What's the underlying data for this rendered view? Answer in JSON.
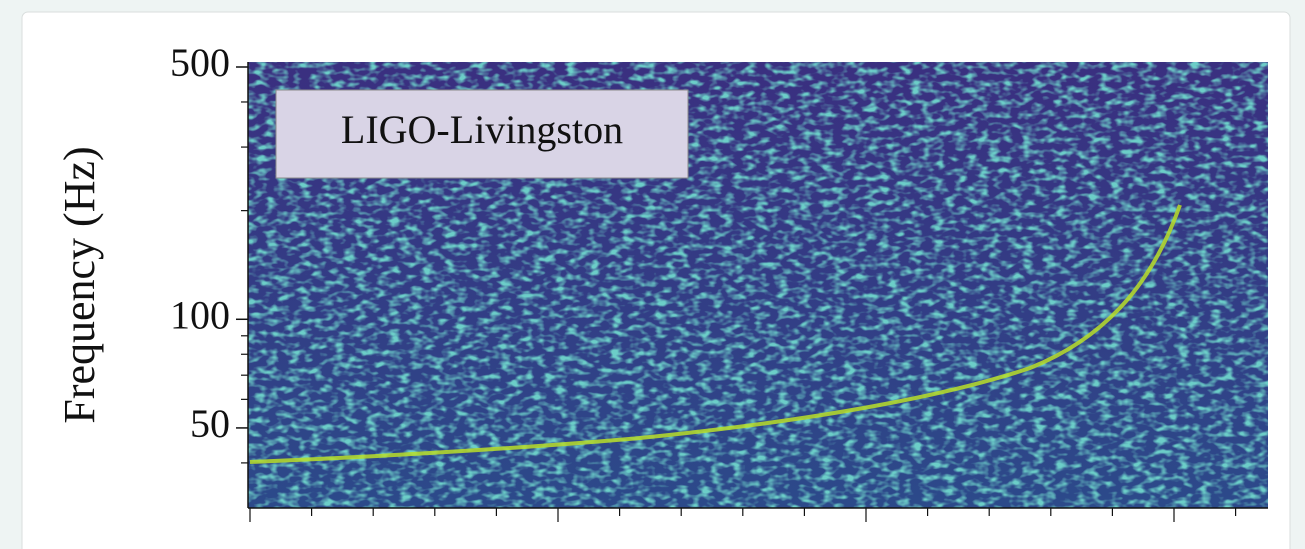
{
  "chart_data": {
    "type": "spectrogram",
    "ylabel": "Frequency (Hz)",
    "annotation": "LIGO-Livingston",
    "ylim": [
      30,
      500
    ],
    "log_y": true,
    "yticks": [
      50,
      100,
      500
    ],
    "yminor": [
      40,
      60,
      70,
      80,
      90,
      200,
      300,
      400
    ]
  }
}
